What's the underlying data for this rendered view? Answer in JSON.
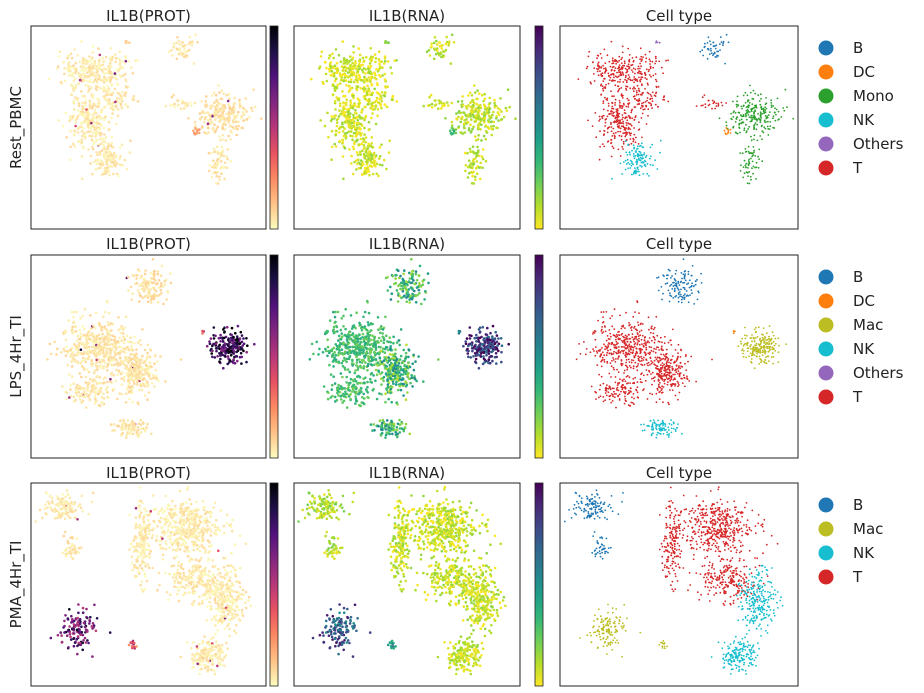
{
  "chart_data": {
    "type": "scatter",
    "kind": "umap-embedding-grid",
    "column_titles": [
      "IL1B(PROT)",
      "IL1B(RNA)",
      "Cell type"
    ],
    "row_labels": [
      "Rest_PBMC",
      "LPS_4Hr_TI",
      "PMA_4Hr_TI"
    ],
    "colormaps": {
      "prot": "magma_r",
      "rna": "viridis_r"
    },
    "category_colors": {
      "B": "#1f77b4",
      "DC": "#ff7f0e",
      "Mono": "#2ca02c",
      "Mac": "#bcbd22",
      "NK": "#17becf",
      "Others": "#9467bd",
      "T": "#d62728"
    },
    "rows": [
      {
        "label": "Rest_PBMC",
        "legend": [
          "B",
          "DC",
          "Mono",
          "NK",
          "Others",
          "T"
        ],
        "clusters": [
          {
            "cell_type": "T",
            "center": [
              0.26,
              0.22
            ],
            "spread": [
              0.13,
              0.08
            ],
            "n": 260,
            "prot": 0.04,
            "rna": 0.06
          },
          {
            "cell_type": "T",
            "center": [
              0.24,
              0.47
            ],
            "spread": [
              0.09,
              0.12
            ],
            "n": 240,
            "prot": 0.04,
            "rna": 0.07
          },
          {
            "cell_type": "T",
            "center": [
              0.35,
              0.36
            ],
            "spread": [
              0.09,
              0.07
            ],
            "n": 90,
            "prot": 0.04,
            "rna": 0.06
          },
          {
            "cell_type": "NK",
            "center": [
              0.33,
              0.66
            ],
            "spread": [
              0.06,
              0.08
            ],
            "n": 120,
            "prot": 0.04,
            "rna": 0.07
          },
          {
            "cell_type": "T",
            "center": [
              0.64,
              0.38
            ],
            "spread": [
              0.04,
              0.03
            ],
            "n": 25,
            "prot": 0.04,
            "rna": 0.08
          },
          {
            "cell_type": "B",
            "center": [
              0.65,
              0.11
            ],
            "spread": [
              0.05,
              0.05
            ],
            "n": 45,
            "prot": 0.05,
            "rna": 0.07
          },
          {
            "cell_type": "Mono",
            "center": [
              0.81,
              0.44
            ],
            "spread": [
              0.11,
              0.09
            ],
            "n": 230,
            "prot": 0.06,
            "rna": 0.1
          },
          {
            "cell_type": "Mono",
            "center": [
              0.8,
              0.68
            ],
            "spread": [
              0.04,
              0.08
            ],
            "n": 60,
            "prot": 0.05,
            "rna": 0.09
          },
          {
            "cell_type": "DC",
            "center": [
              0.71,
              0.52
            ],
            "spread": [
              0.02,
              0.02
            ],
            "n": 10,
            "prot": 0.2,
            "rna": 0.3
          },
          {
            "cell_type": "Others",
            "center": [
              0.41,
              0.08
            ],
            "spread": [
              0.01,
              0.01
            ],
            "n": 4,
            "prot": 0.1,
            "rna": 0.2
          }
        ]
      },
      {
        "label": "LPS_4Hr_TI",
        "legend": [
          "B",
          "DC",
          "Mac",
          "NK",
          "Others",
          "T"
        ],
        "clusters": [
          {
            "cell_type": "T",
            "center": [
              0.28,
              0.45
            ],
            "spread": [
              0.13,
              0.13
            ],
            "n": 420,
            "prot": 0.05,
            "rna": 0.3
          },
          {
            "cell_type": "T",
            "center": [
              0.45,
              0.57
            ],
            "spread": [
              0.08,
              0.11
            ],
            "n": 260,
            "prot": 0.05,
            "rna": 0.32
          },
          {
            "cell_type": "T",
            "center": [
              0.26,
              0.67
            ],
            "spread": [
              0.09,
              0.06
            ],
            "n": 120,
            "prot": 0.05,
            "rna": 0.3
          },
          {
            "cell_type": "NK",
            "center": [
              0.43,
              0.85
            ],
            "spread": [
              0.06,
              0.04
            ],
            "n": 90,
            "prot": 0.05,
            "rna": 0.35
          },
          {
            "cell_type": "B",
            "center": [
              0.51,
              0.15
            ],
            "spread": [
              0.08,
              0.08
            ],
            "n": 120,
            "prot": 0.06,
            "rna": 0.35
          },
          {
            "cell_type": "Mac",
            "center": [
              0.84,
              0.45
            ],
            "spread": [
              0.07,
              0.07
            ],
            "n": 200,
            "prot": 0.85,
            "rna": 0.85
          },
          {
            "cell_type": "DC",
            "center": [
              0.73,
              0.38
            ],
            "spread": [
              0.01,
              0.01
            ],
            "n": 6,
            "prot": 0.5,
            "rna": 0.6
          }
        ]
      },
      {
        "label": "PMA_4Hr_TI",
        "legend": [
          "B",
          "Mac",
          "NK",
          "T"
        ],
        "clusters": [
          {
            "cell_type": "B",
            "center": [
              0.14,
              0.12
            ],
            "spread": [
              0.08,
              0.06
            ],
            "n": 120,
            "prot": 0.04,
            "rna": 0.12
          },
          {
            "cell_type": "B",
            "center": [
              0.17,
              0.32
            ],
            "spread": [
              0.03,
              0.06
            ],
            "n": 40,
            "prot": 0.05,
            "rna": 0.12
          },
          {
            "cell_type": "Mac",
            "center": [
              0.2,
              0.72
            ],
            "spread": [
              0.07,
              0.09
            ],
            "n": 130,
            "prot": 0.72,
            "rna": 0.72
          },
          {
            "cell_type": "Mac",
            "center": [
              0.43,
              0.8
            ],
            "spread": [
              0.02,
              0.02
            ],
            "n": 12,
            "prot": 0.4,
            "rna": 0.5
          },
          {
            "cell_type": "T",
            "center": [
              0.47,
              0.3
            ],
            "spread": [
              0.04,
              0.17
            ],
            "n": 160,
            "prot": 0.04,
            "rna": 0.08
          },
          {
            "cell_type": "T",
            "center": [
              0.66,
              0.22
            ],
            "spread": [
              0.14,
              0.12
            ],
            "n": 420,
            "prot": 0.04,
            "rna": 0.08
          },
          {
            "cell_type": "T",
            "center": [
              0.7,
              0.47
            ],
            "spread": [
              0.12,
              0.1
            ],
            "n": 230,
            "prot": 0.04,
            "rna": 0.08
          },
          {
            "cell_type": "NK",
            "center": [
              0.83,
              0.58
            ],
            "spread": [
              0.07,
              0.13
            ],
            "n": 230,
            "prot": 0.04,
            "rna": 0.08
          },
          {
            "cell_type": "NK",
            "center": [
              0.75,
              0.85
            ],
            "spread": [
              0.07,
              0.07
            ],
            "n": 170,
            "prot": 0.04,
            "rna": 0.08
          }
        ]
      }
    ]
  }
}
